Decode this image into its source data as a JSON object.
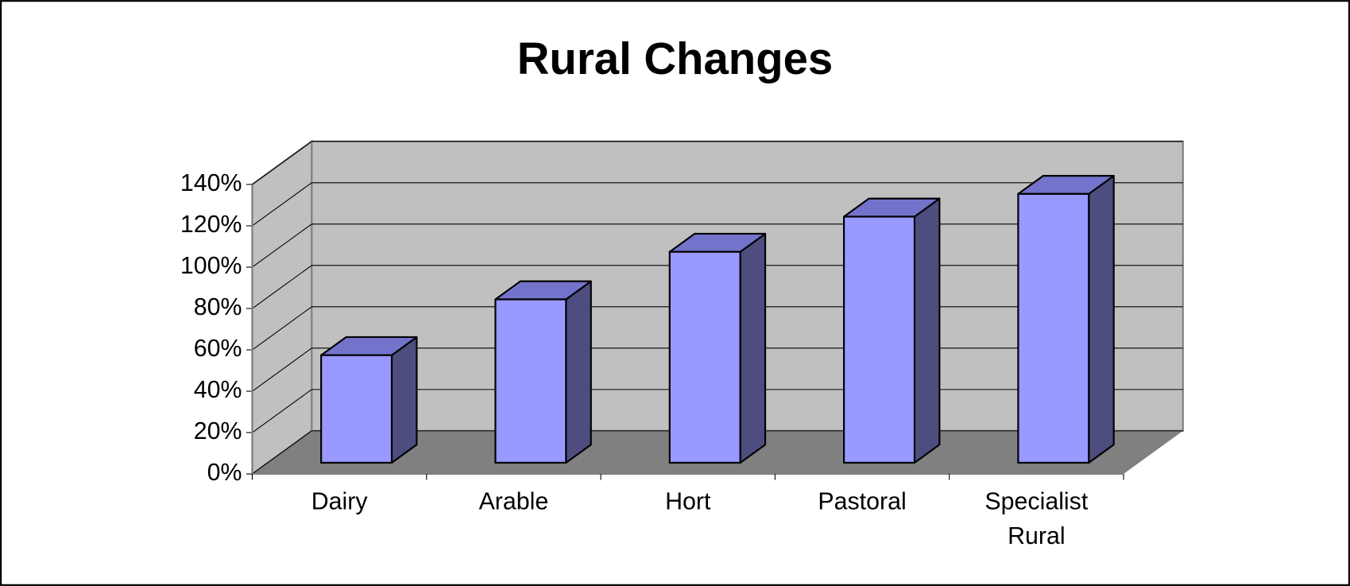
{
  "chart_data": {
    "type": "bar3d",
    "title": "Rural Changes",
    "categories": [
      "Dairy",
      "Arable",
      "Hort",
      "Pastoral",
      "Specialist Rural"
    ],
    "values": [
      52,
      79,
      102,
      119,
      130
    ],
    "color": "#9999ff",
    "ylim": [
      0,
      140
    ],
    "yticks": [
      {
        "value": 0,
        "label": "0%"
      },
      {
        "value": 20,
        "label": "20%"
      },
      {
        "value": 40,
        "label": "40%"
      },
      {
        "value": 60,
        "label": "60%"
      },
      {
        "value": 80,
        "label": "80%"
      },
      {
        "value": 100,
        "label": "100%"
      },
      {
        "value": 120,
        "label": "120%"
      },
      {
        "value": 140,
        "label": "140%"
      }
    ],
    "grid": true
  }
}
